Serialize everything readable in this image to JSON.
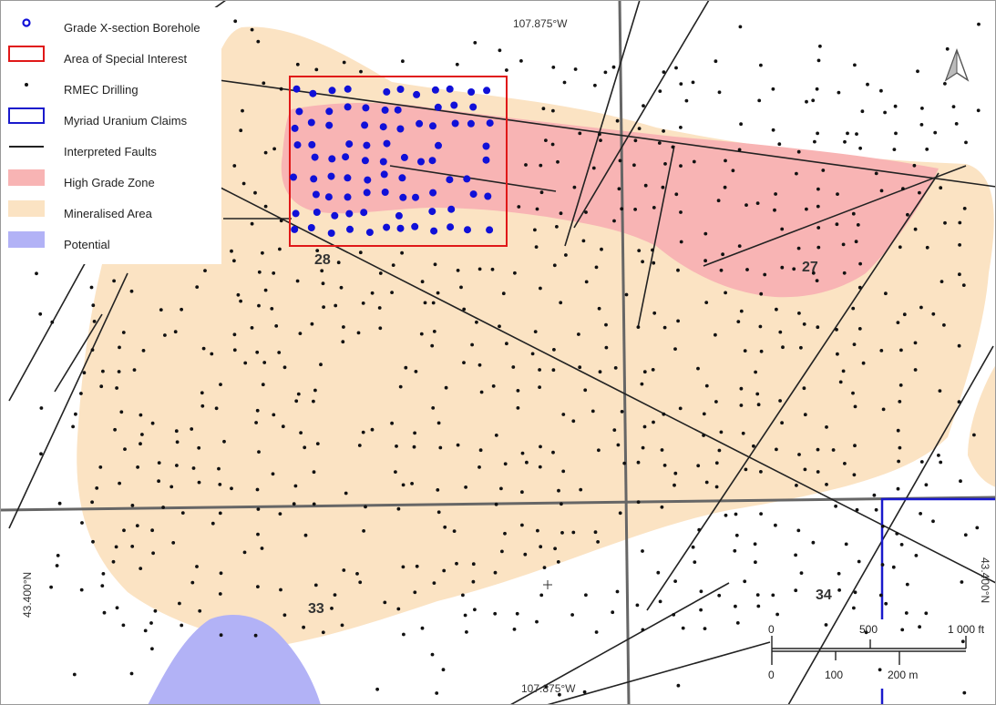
{
  "legend": {
    "items": [
      {
        "label": "Grade X-section Borehole",
        "symbol": "blue-ring"
      },
      {
        "label": "Area of Special Interest",
        "symbol": "red-box"
      },
      {
        "label": "RMEC Drilling",
        "symbol": "black-dot"
      },
      {
        "label": "Myriad Uranium Claims",
        "symbol": "blue-box"
      },
      {
        "label": "Interpreted Faults",
        "symbol": "black-line"
      },
      {
        "label": "High Grade Zone",
        "symbol": "pink-fill"
      },
      {
        "label": "Mineralised Area",
        "symbol": "tan-fill"
      },
      {
        "label": "Potential",
        "symbol": "lavender-fill"
      }
    ]
  },
  "colors": {
    "high_grade": "#f8b4b4",
    "mineralised": "#fbe3c3",
    "potential": "#b2b2f6",
    "borehole": "#1010d8",
    "aoi": "#e01818",
    "claims": "#1a1acc",
    "faults": "#222222",
    "grid": "#666666"
  },
  "coordinates": {
    "top_lon": "107.875°W",
    "bottom_lon": "107.875°W",
    "left_lat": "43.400°N",
    "right_lat": "43.400°N"
  },
  "sections": [
    "28",
    "27",
    "33",
    "34"
  ],
  "scalebar": {
    "ft_ticks": [
      "0",
      "500",
      "1 000 ft"
    ],
    "m_ticks": [
      "0",
      "100",
      "200 m"
    ]
  },
  "north_arrow": "north-arrow-icon"
}
